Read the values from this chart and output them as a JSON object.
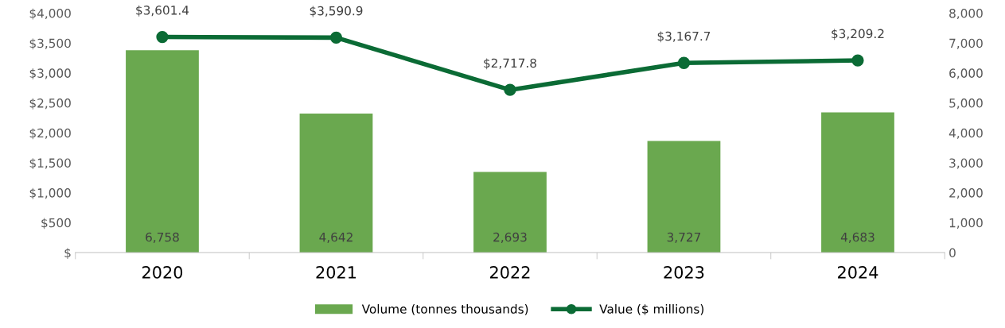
{
  "chart_data": {
    "type": "bar",
    "categories": [
      "2020",
      "2021",
      "2022",
      "2023",
      "2024"
    ],
    "series": [
      {
        "name": "Volume (tonnes thousands)",
        "axis": "y2",
        "color": "#6aa84f",
        "values": [
          6758,
          4642,
          2693,
          3727,
          4683
        ],
        "value_labels": [
          "6,758",
          "4,642",
          "2,693",
          "3,727",
          "4,683"
        ]
      },
      {
        "name": "Value ($ millions)",
        "type": "line",
        "axis": "y",
        "color": "#0b6b35",
        "marker": "circle",
        "values": [
          3601.4,
          3590.9,
          2717.8,
          3167.7,
          3209.2
        ],
        "value_labels": [
          "$3,601.4",
          "$3,590.9",
          "$2,717.8",
          "$3,167.7",
          "$3,209.2"
        ]
      }
    ],
    "ylim": [
      0,
      4000
    ],
    "yticks": [
      {
        "value": 0,
        "label": "$"
      },
      {
        "value": 500,
        "label": "$500"
      },
      {
        "value": 1000,
        "label": "$1,000"
      },
      {
        "value": 1500,
        "label": "$1,500"
      },
      {
        "value": 2000,
        "label": "$2,000"
      },
      {
        "value": 2500,
        "label": "$2,500"
      },
      {
        "value": 3000,
        "label": "$3,000"
      },
      {
        "value": 3500,
        "label": "$3,500"
      },
      {
        "value": 4000,
        "label": "$4,000"
      }
    ],
    "y2lim": [
      0,
      8000
    ],
    "y2ticks": [
      {
        "value": 0,
        "label": "0"
      },
      {
        "value": 1000,
        "label": "1,000"
      },
      {
        "value": 2000,
        "label": "2,000"
      },
      {
        "value": 3000,
        "label": "3,000"
      },
      {
        "value": 4000,
        "label": "4,000"
      },
      {
        "value": 5000,
        "label": "5,000"
      },
      {
        "value": 6000,
        "label": "6,000"
      },
      {
        "value": 7000,
        "label": "7,000"
      },
      {
        "value": 8000,
        "label": "8,000"
      }
    ],
    "grid": false,
    "legend": "bottom"
  }
}
